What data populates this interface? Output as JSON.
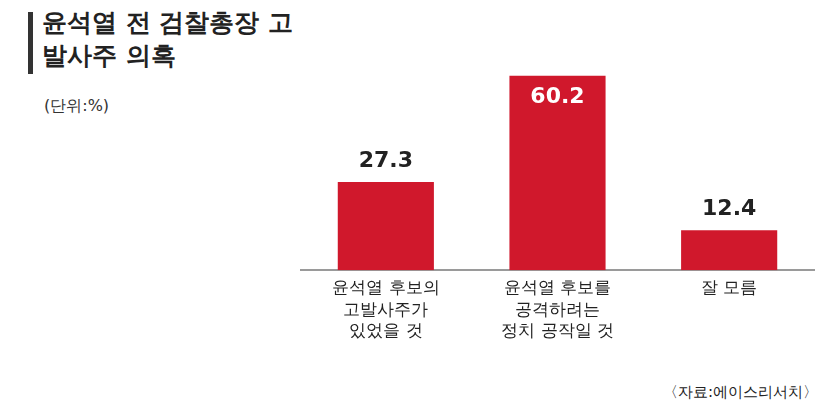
{
  "chart_data": {
    "type": "bar",
    "title": "윤석열 전 검찰총장 고발사주 의혹",
    "subtitle": "(단위:%)",
    "annotations": [
      "〈자료:에이스리서치〉"
    ],
    "categories": [
      [
        "윤석열 후보의",
        "고발사주가",
        "있었을 것"
      ],
      [
        "윤석열 후보를",
        "공격하려는",
        "정치 공작일 것"
      ],
      [
        "잘 모름"
      ]
    ],
    "values": [
      27.3,
      60.2,
      12.4
    ],
    "color": "#d0182c",
    "ylim": [
      0,
      62
    ],
    "grid": false,
    "data_labels": true,
    "tick_labels": "x"
  }
}
